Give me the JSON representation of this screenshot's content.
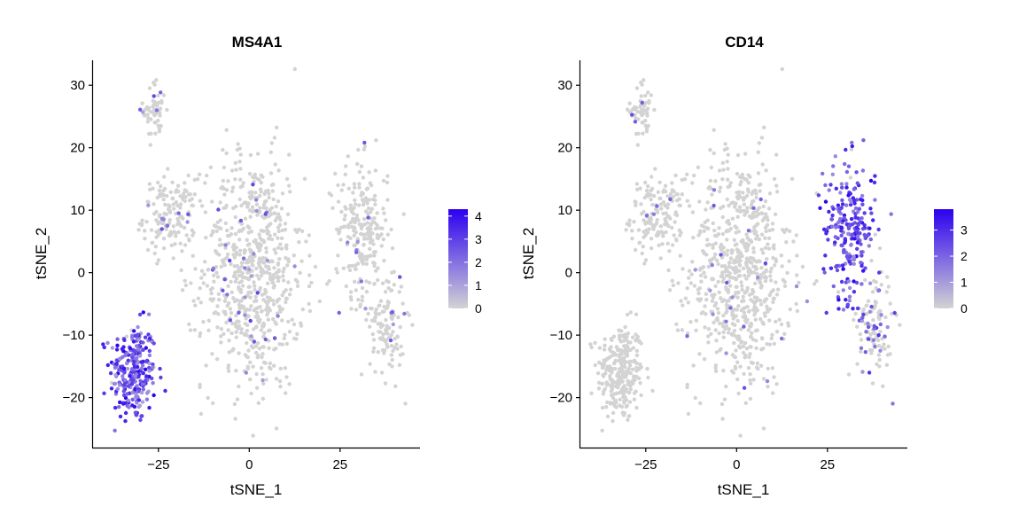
{
  "chart_data": [
    {
      "type": "scatter",
      "title": "MS4A1",
      "xlabel": "tSNE_1",
      "ylabel": "tSNE_2",
      "xlim": [
        -43,
        47
      ],
      "ylim": [
        -28,
        34
      ],
      "x_ticks": [
        -25,
        0,
        25
      ],
      "x_tick_labels": [
        "−25",
        "0",
        "25"
      ],
      "y_ticks": [
        -20,
        -10,
        0,
        10,
        20,
        30
      ],
      "y_tick_labels": [
        "−20",
        "−10",
        "0",
        "10",
        "20",
        "30"
      ],
      "grid": false,
      "legend": {
        "position": "right",
        "type": "colorbar",
        "range": [
          0,
          4.3
        ],
        "ticks": [
          0,
          1,
          2,
          3,
          4
        ],
        "tick_labels": [
          "0",
          "1",
          "2",
          "3",
          "4"
        ],
        "low_color": "#d3d3d3",
        "high_color": "#2b00f0"
      },
      "clusters": [
        {
          "name": "left-cluster",
          "center": [
            -32,
            -16
          ],
          "spread": [
            3.2,
            4.0
          ],
          "n": 260,
          "expr_prob": 0.97,
          "expr_range": [
            1.0,
            4.3
          ]
        },
        {
          "name": "upper-left",
          "center": [
            -26,
            26
          ],
          "spread": [
            1.6,
            2.4
          ],
          "n": 55,
          "expr_prob": 0.08,
          "expr_range": [
            1,
            3
          ]
        },
        {
          "name": "left-arm",
          "center": [
            -22,
            9
          ],
          "spread": [
            3.6,
            3.0
          ],
          "n": 150,
          "expr_prob": 0.05,
          "expr_range": [
            1,
            3
          ]
        },
        {
          "name": "middle",
          "center": [
            1,
            0
          ],
          "spread": [
            7.0,
            9.5
          ],
          "n": 720,
          "expr_prob": 0.05,
          "expr_range": [
            1,
            3
          ]
        },
        {
          "name": "right-upper",
          "center": [
            31,
            7
          ],
          "spread": [
            3.6,
            5.5
          ],
          "n": 230,
          "expr_prob": 0.04,
          "expr_range": [
            1,
            3
          ]
        },
        {
          "name": "right-lower",
          "center": [
            38,
            -8
          ],
          "spread": [
            2.4,
            4.5
          ],
          "n": 120,
          "expr_prob": 0.07,
          "expr_range": [
            1,
            3
          ]
        }
      ]
    },
    {
      "type": "scatter",
      "title": "CD14",
      "xlabel": "tSNE_1",
      "ylabel": "tSNE_2",
      "xlim": [
        -43,
        47
      ],
      "ylim": [
        -28,
        34
      ],
      "x_ticks": [
        -25,
        0,
        25
      ],
      "x_tick_labels": [
        "−25",
        "0",
        "25"
      ],
      "y_ticks": [
        -20,
        -10,
        0,
        10,
        20,
        30
      ],
      "y_tick_labels": [
        "−20",
        "−10",
        "0",
        "10",
        "20",
        "30"
      ],
      "grid": false,
      "legend": {
        "position": "right",
        "type": "colorbar",
        "range": [
          0,
          3.8
        ],
        "ticks": [
          0,
          1,
          2,
          3
        ],
        "tick_labels": [
          "0",
          "1",
          "2",
          "3"
        ],
        "low_color": "#d3d3d3",
        "high_color": "#2b00f0"
      },
      "clusters": [
        {
          "name": "left-cluster",
          "center": [
            -32,
            -16
          ],
          "spread": [
            3.2,
            4.0
          ],
          "n": 260,
          "expr_prob": 0.0,
          "expr_range": [
            1,
            2
          ]
        },
        {
          "name": "upper-left",
          "center": [
            -26,
            26
          ],
          "spread": [
            1.6,
            2.4
          ],
          "n": 55,
          "expr_prob": 0.04,
          "expr_range": [
            1,
            3
          ]
        },
        {
          "name": "left-arm",
          "center": [
            -22,
            9
          ],
          "spread": [
            3.6,
            3.0
          ],
          "n": 150,
          "expr_prob": 0.04,
          "expr_range": [
            1,
            2.5
          ]
        },
        {
          "name": "middle",
          "center": [
            1,
            0
          ],
          "spread": [
            7.0,
            9.5
          ],
          "n": 720,
          "expr_prob": 0.04,
          "expr_range": [
            1,
            2.5
          ]
        },
        {
          "name": "right-upper",
          "center": [
            31,
            7
          ],
          "spread": [
            3.6,
            5.5
          ],
          "n": 230,
          "expr_prob": 0.96,
          "expr_range": [
            1.2,
            3.8
          ]
        },
        {
          "name": "right-lower",
          "center": [
            38,
            -8
          ],
          "spread": [
            2.4,
            4.5
          ],
          "n": 120,
          "expr_prob": 0.25,
          "expr_range": [
            1,
            3
          ]
        }
      ]
    }
  ]
}
